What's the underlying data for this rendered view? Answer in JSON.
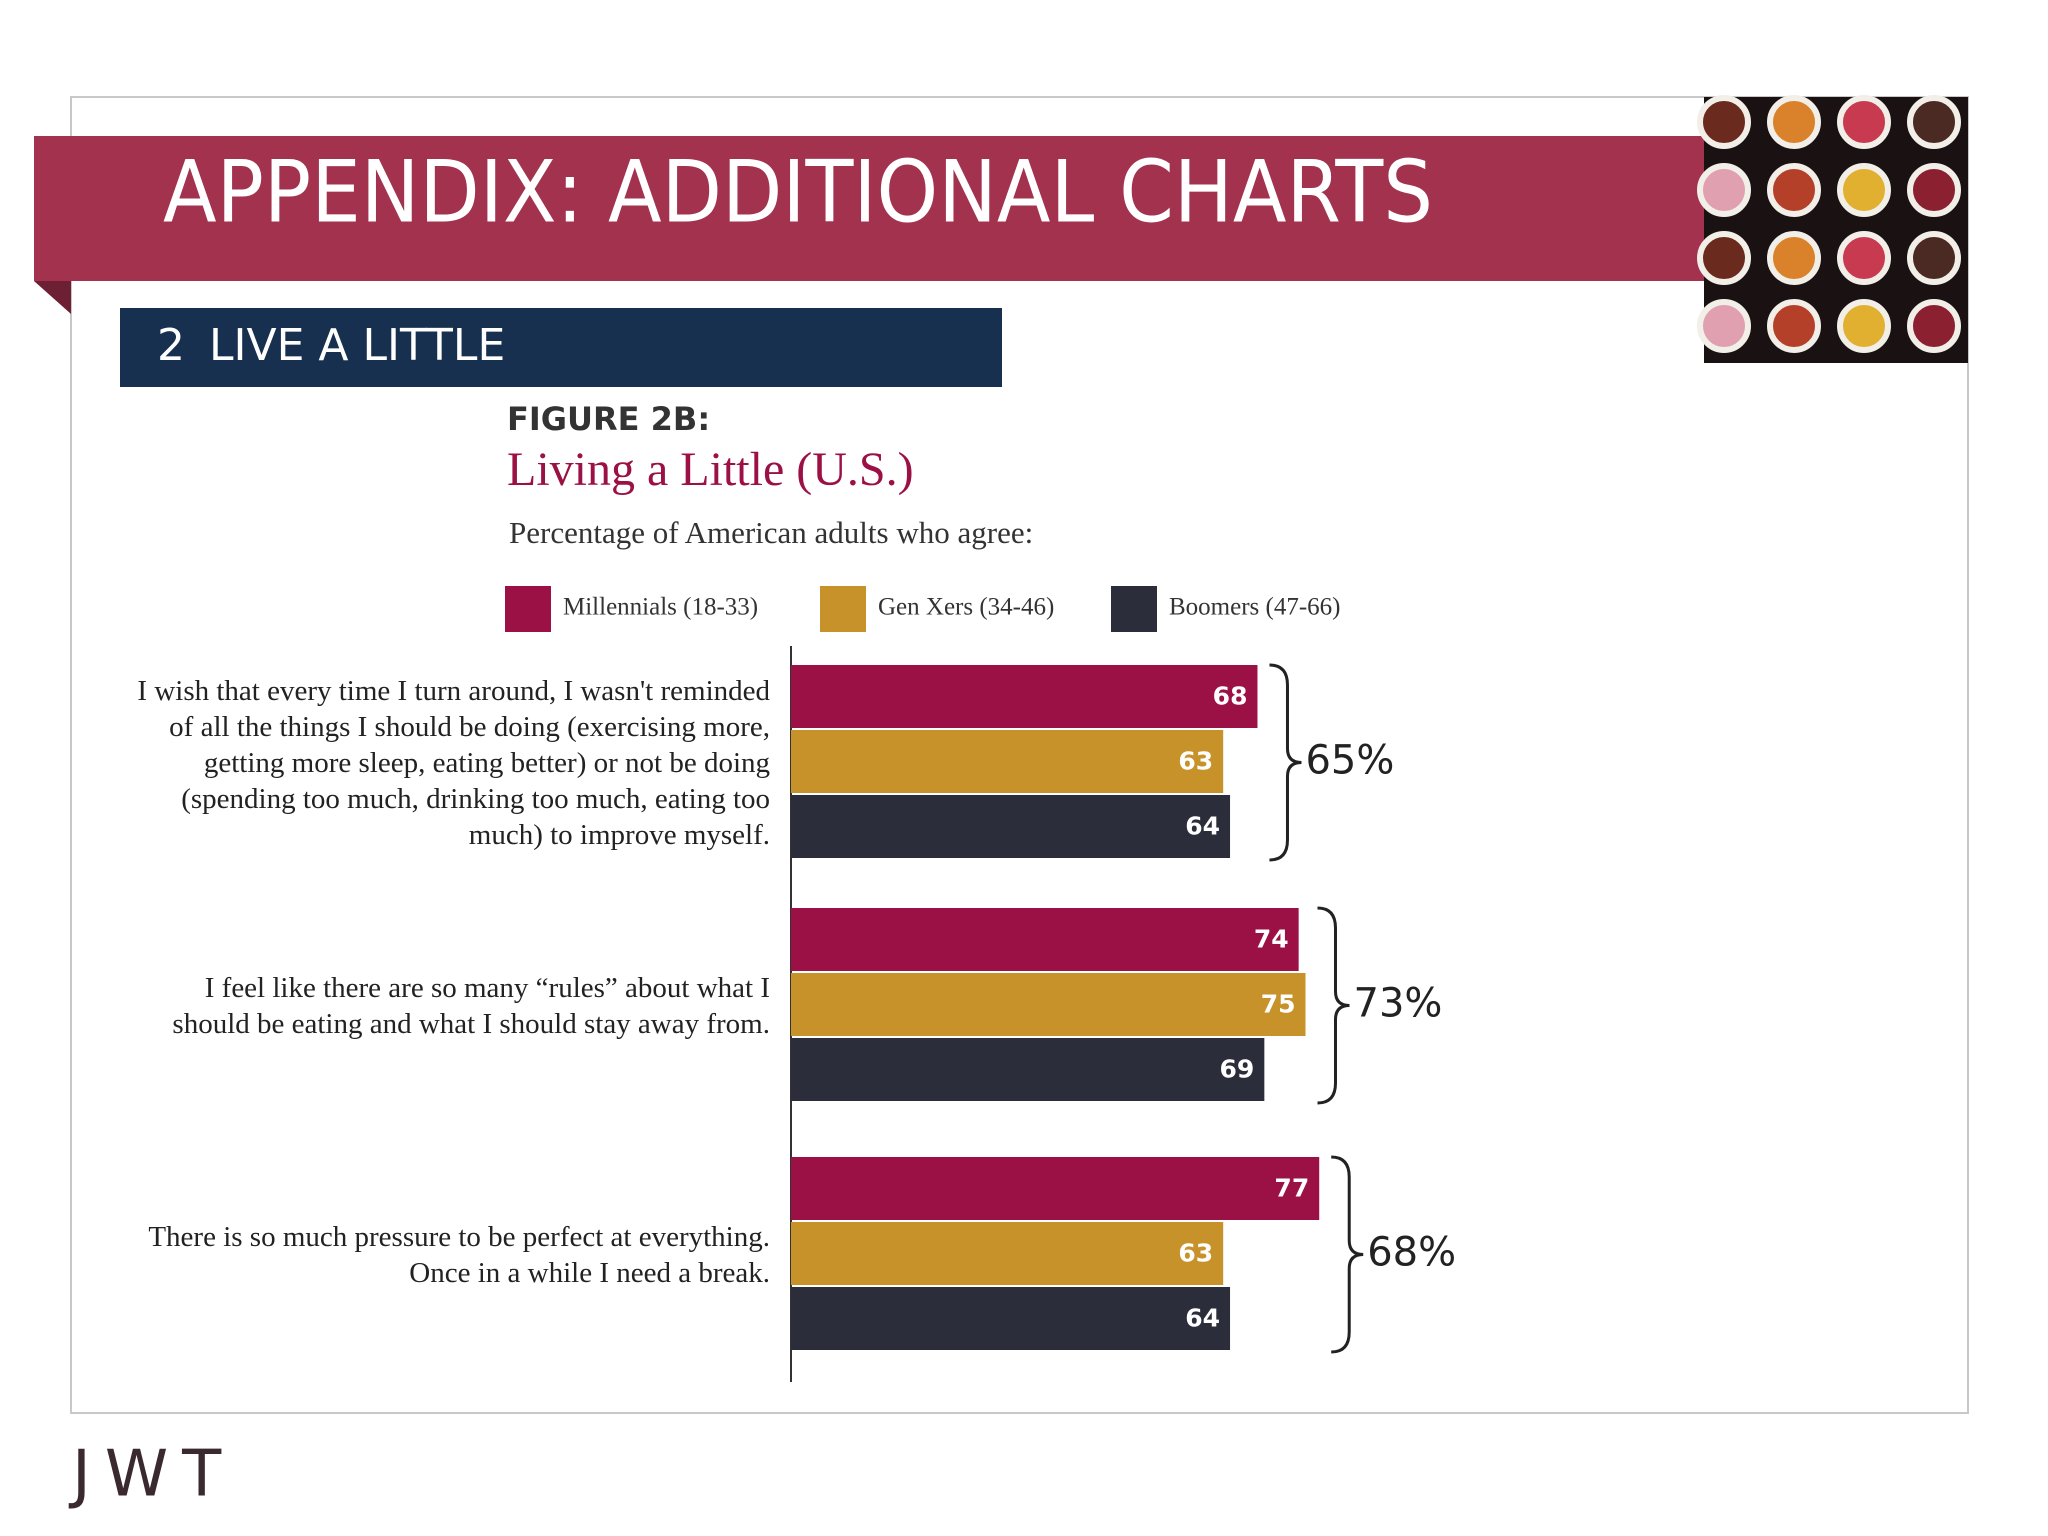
{
  "slide": {
    "title": "APPENDIX: ADDITIONAL CHARTS",
    "section_number": "2",
    "section": "LIVE A LITTLE",
    "logo": "JWT"
  },
  "chart_data": {
    "type": "bar",
    "orientation": "horizontal",
    "figure_label": "FIGURE 2B:",
    "title": "Living a Little (U.S.)",
    "subtitle": "Percentage of American adults who agree:",
    "categories": [
      "I wish that every time I turn around, I wasn't reminded of all the things I should be doing (exercising more, getting more sleep, eating better) or not be doing (spending too much, drinking too much, eating too much) to improve myself.",
      "I feel like there are so many “rules” about what I should be eating and what I should stay away from.",
      "There is so much pressure to be perfect at everything. Once in a while I need a break."
    ],
    "series": [
      {
        "name": "Millennials (18-33)",
        "color": "#9b1045",
        "values": [
          68,
          74,
          77
        ]
      },
      {
        "name": "Gen Xers (34-46)",
        "color": "#c8922a",
        "values": [
          63,
          75,
          63
        ]
      },
      {
        "name": "Boomers (47-66)",
        "color": "#2b2d3a",
        "values": [
          64,
          69,
          64
        ]
      }
    ],
    "totals": {
      "values": [
        65,
        73,
        68
      ],
      "value_labels": [
        "65%",
        "73%",
        "68%"
      ]
    },
    "xlim": [
      0,
      100
    ]
  }
}
